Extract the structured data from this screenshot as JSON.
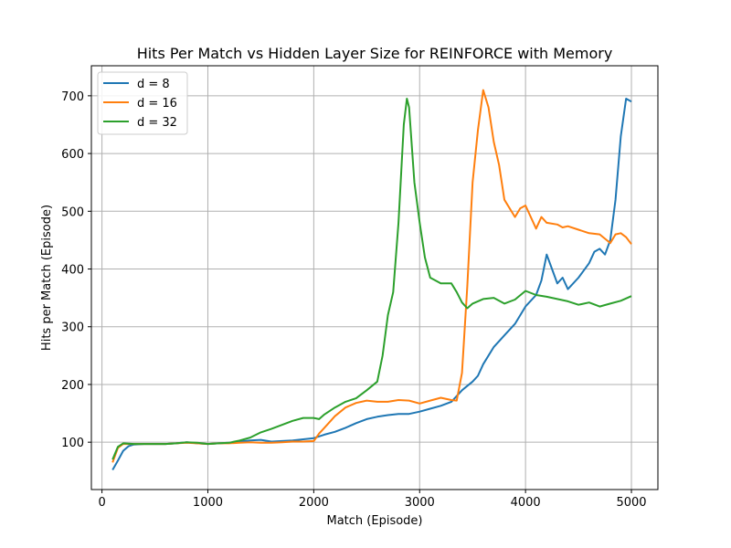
{
  "chart_data": {
    "type": "line",
    "title": "Hits Per Match vs Hidden Layer Size for REINFORCE with Memory",
    "xlabel": "Match (Episode)",
    "ylabel": "Hits per Match (Episode)",
    "xlim": [
      -100,
      5250
    ],
    "ylim": [
      18,
      752
    ],
    "xticks": [
      0,
      1000,
      2000,
      3000,
      4000,
      5000
    ],
    "xtick_labels": [
      "0",
      "1000",
      "2000",
      "3000",
      "4000",
      "5000"
    ],
    "yticks": [
      100,
      200,
      300,
      400,
      500,
      600,
      700
    ],
    "ytick_labels": [
      "100",
      "200",
      "300",
      "400",
      "500",
      "600",
      "700"
    ],
    "grid": true,
    "legend_position": "top-left",
    "series": [
      {
        "name": "d = 8",
        "color": "#1f77b4",
        "points": [
          [
            100,
            52
          ],
          [
            150,
            68
          ],
          [
            200,
            85
          ],
          [
            250,
            93
          ],
          [
            300,
            96
          ],
          [
            400,
            97
          ],
          [
            500,
            97
          ],
          [
            600,
            97
          ],
          [
            700,
            98
          ],
          [
            800,
            100
          ],
          [
            900,
            98
          ],
          [
            1000,
            97
          ],
          [
            1100,
            98
          ],
          [
            1200,
            99
          ],
          [
            1300,
            101
          ],
          [
            1400,
            103
          ],
          [
            1500,
            104
          ],
          [
            1600,
            101
          ],
          [
            1700,
            102
          ],
          [
            1800,
            103
          ],
          [
            1900,
            105
          ],
          [
            2000,
            107
          ],
          [
            2100,
            113
          ],
          [
            2200,
            118
          ],
          [
            2300,
            125
          ],
          [
            2400,
            133
          ],
          [
            2500,
            140
          ],
          [
            2600,
            144
          ],
          [
            2700,
            147
          ],
          [
            2800,
            149
          ],
          [
            2900,
            149
          ],
          [
            3000,
            153
          ],
          [
            3100,
            158
          ],
          [
            3200,
            163
          ],
          [
            3300,
            170
          ],
          [
            3400,
            190
          ],
          [
            3500,
            205
          ],
          [
            3550,
            215
          ],
          [
            3600,
            235
          ],
          [
            3700,
            265
          ],
          [
            3800,
            285
          ],
          [
            3900,
            305
          ],
          [
            4000,
            335
          ],
          [
            4100,
            355
          ],
          [
            4150,
            380
          ],
          [
            4200,
            425
          ],
          [
            4250,
            400
          ],
          [
            4300,
            375
          ],
          [
            4350,
            385
          ],
          [
            4400,
            365
          ],
          [
            4500,
            385
          ],
          [
            4600,
            410
          ],
          [
            4650,
            430
          ],
          [
            4700,
            435
          ],
          [
            4750,
            425
          ],
          [
            4800,
            450
          ],
          [
            4850,
            520
          ],
          [
            4900,
            630
          ],
          [
            4950,
            695
          ],
          [
            5000,
            690
          ]
        ]
      },
      {
        "name": "d = 16",
        "color": "#ff7f0e",
        "points": [
          [
            100,
            65
          ],
          [
            150,
            90
          ],
          [
            200,
            97
          ],
          [
            300,
            97
          ],
          [
            400,
            97
          ],
          [
            500,
            97
          ],
          [
            600,
            97
          ],
          [
            700,
            98
          ],
          [
            800,
            99
          ],
          [
            900,
            98
          ],
          [
            1000,
            97
          ],
          [
            1100,
            98
          ],
          [
            1200,
            98
          ],
          [
            1300,
            99
          ],
          [
            1400,
            100
          ],
          [
            1500,
            99
          ],
          [
            1600,
            99
          ],
          [
            1700,
            100
          ],
          [
            1800,
            101
          ],
          [
            1900,
            101
          ],
          [
            2000,
            102
          ],
          [
            2050,
            115
          ],
          [
            2100,
            125
          ],
          [
            2200,
            145
          ],
          [
            2300,
            160
          ],
          [
            2400,
            168
          ],
          [
            2500,
            172
          ],
          [
            2600,
            170
          ],
          [
            2700,
            170
          ],
          [
            2800,
            173
          ],
          [
            2900,
            172
          ],
          [
            3000,
            167
          ],
          [
            3100,
            172
          ],
          [
            3200,
            177
          ],
          [
            3300,
            173
          ],
          [
            3350,
            172
          ],
          [
            3400,
            220
          ],
          [
            3450,
            370
          ],
          [
            3500,
            550
          ],
          [
            3550,
            640
          ],
          [
            3600,
            710
          ],
          [
            3650,
            680
          ],
          [
            3700,
            620
          ],
          [
            3750,
            580
          ],
          [
            3800,
            520
          ],
          [
            3900,
            490
          ],
          [
            3950,
            505
          ],
          [
            4000,
            510
          ],
          [
            4100,
            470
          ],
          [
            4150,
            490
          ],
          [
            4200,
            480
          ],
          [
            4300,
            477
          ],
          [
            4350,
            472
          ],
          [
            4400,
            474
          ],
          [
            4500,
            468
          ],
          [
            4600,
            462
          ],
          [
            4700,
            460
          ],
          [
            4800,
            445
          ],
          [
            4850,
            460
          ],
          [
            4900,
            462
          ],
          [
            4950,
            455
          ],
          [
            5000,
            443
          ]
        ]
      },
      {
        "name": "d = 32",
        "color": "#2ca02c",
        "points": [
          [
            100,
            70
          ],
          [
            150,
            92
          ],
          [
            200,
            98
          ],
          [
            300,
            97
          ],
          [
            400,
            97
          ],
          [
            500,
            97
          ],
          [
            600,
            97
          ],
          [
            700,
            98
          ],
          [
            800,
            100
          ],
          [
            900,
            99
          ],
          [
            1000,
            97
          ],
          [
            1100,
            98
          ],
          [
            1200,
            99
          ],
          [
            1300,
            103
          ],
          [
            1400,
            108
          ],
          [
            1500,
            117
          ],
          [
            1600,
            123
          ],
          [
            1700,
            130
          ],
          [
            1800,
            137
          ],
          [
            1900,
            142
          ],
          [
            2000,
            142
          ],
          [
            2050,
            140
          ],
          [
            2100,
            148
          ],
          [
            2200,
            160
          ],
          [
            2300,
            170
          ],
          [
            2400,
            176
          ],
          [
            2500,
            190
          ],
          [
            2600,
            205
          ],
          [
            2650,
            250
          ],
          [
            2700,
            320
          ],
          [
            2750,
            360
          ],
          [
            2800,
            480
          ],
          [
            2850,
            650
          ],
          [
            2880,
            695
          ],
          [
            2900,
            680
          ],
          [
            2950,
            550
          ],
          [
            3000,
            480
          ],
          [
            3050,
            420
          ],
          [
            3100,
            385
          ],
          [
            3200,
            375
          ],
          [
            3300,
            375
          ],
          [
            3350,
            360
          ],
          [
            3400,
            342
          ],
          [
            3450,
            332
          ],
          [
            3500,
            340
          ],
          [
            3600,
            348
          ],
          [
            3700,
            350
          ],
          [
            3800,
            340
          ],
          [
            3900,
            347
          ],
          [
            4000,
            362
          ],
          [
            4100,
            355
          ],
          [
            4200,
            352
          ],
          [
            4300,
            348
          ],
          [
            4400,
            344
          ],
          [
            4500,
            338
          ],
          [
            4600,
            342
          ],
          [
            4700,
            335
          ],
          [
            4800,
            340
          ],
          [
            4900,
            345
          ],
          [
            5000,
            353
          ]
        ]
      }
    ]
  }
}
